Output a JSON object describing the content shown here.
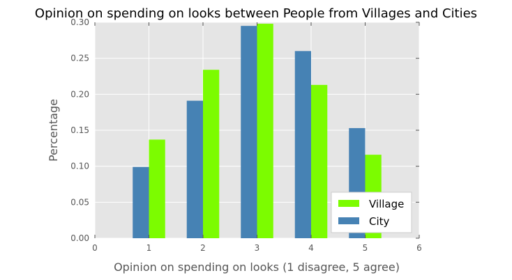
{
  "chart_data": {
    "type": "bar",
    "title": "Opinion on spending on looks between People from Villages and Cities",
    "xlabel": "Opinion on spending on looks (1 disagree, 5 agree)",
    "ylabel": "Percentage",
    "xlim": [
      0,
      6
    ],
    "ylim": [
      0,
      0.3
    ],
    "xticks": [
      "0",
      "1",
      "2",
      "3",
      "4",
      "5",
      "6"
    ],
    "yticks": [
      "0.00",
      "0.05",
      "0.10",
      "0.15",
      "0.20",
      "0.25",
      "0.30"
    ],
    "categories": [
      1,
      2,
      3,
      4,
      5
    ],
    "grid": true,
    "legend_position": "lower-right",
    "series": [
      {
        "name": "Village",
        "color": "#7cfc00",
        "values": [
          0.137,
          0.234,
          0.298,
          0.213,
          0.116
        ]
      },
      {
        "name": "City",
        "color": "#4682b4",
        "values": [
          0.099,
          0.191,
          0.295,
          0.26,
          0.153
        ]
      }
    ],
    "legend": [
      "Village",
      "City"
    ],
    "colors": {
      "plot_background": "#e5e5e5",
      "grid": "#ffffff",
      "text": "#555555"
    }
  }
}
